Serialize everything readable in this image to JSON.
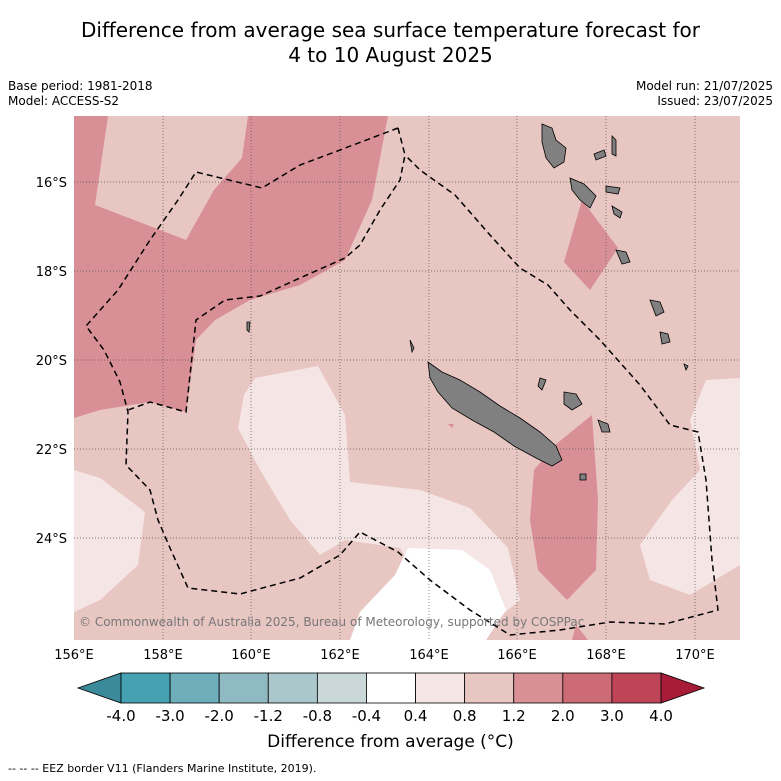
{
  "title_line1": "Difference from average sea surface temperature forecast for",
  "title_line2": "4 to 10 August 2025",
  "base_period": "Base period: 1981-2018",
  "model": "Model: ACCESS-S2",
  "model_run": "Model run: 21/07/2025",
  "issued": "Issued: 23/07/2025",
  "copyright": "© Commonwealth of Australia 2025, Bureau of Meteorology, supported by COSPPac",
  "lat_labels": [
    "16°S",
    "18°S",
    "20°S",
    "22°S",
    "24°S"
  ],
  "lon_labels": [
    "156°E",
    "158°E",
    "160°E",
    "162°E",
    "164°E",
    "166°E",
    "168°E",
    "170°E"
  ],
  "colorbar": {
    "label": "Difference from average (°C)",
    "ticks": [
      "-4.0",
      "-3.0",
      "-2.0",
      "-1.2",
      "-0.8",
      "-0.4",
      "0.4",
      "0.8",
      "1.2",
      "2.0",
      "3.0",
      "4.0"
    ],
    "colors": [
      "#46a2b2",
      "#6eaebb",
      "#8fbac4",
      "#aac8cc",
      "#cbd8d9",
      "#ffffff",
      "#f5e6e5",
      "#e8c6c2",
      "#d88f96",
      "#cc6a76",
      "#bf4457"
    ],
    "under_color": "#3a8a99",
    "over_color": "#a81c3a"
  },
  "footnote": "--  --  -- EEZ border V11 (Flanders Marine Institute, 2019).",
  "colors": {
    "land": "#808080",
    "grid": "#555555",
    "eez": "#000000"
  }
}
